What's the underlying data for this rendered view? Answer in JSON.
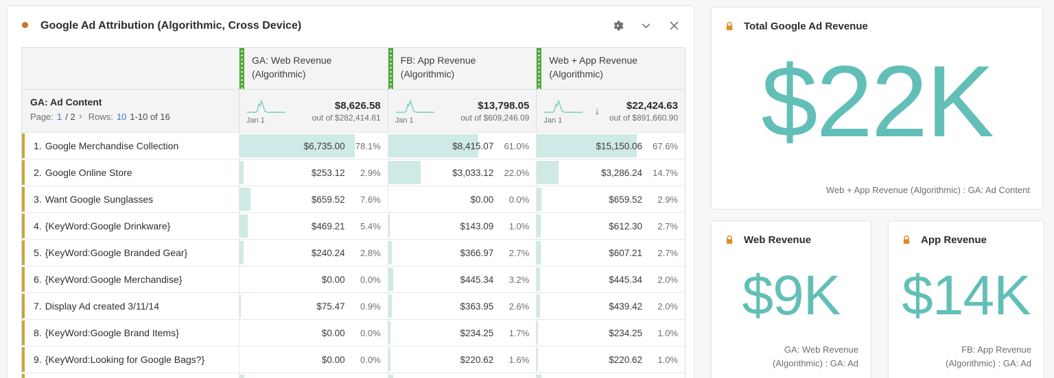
{
  "colors": {
    "accent_teal": "#62bfb7",
    "bar_fill": "#cfe9e6",
    "column_band_green": "#56a83c",
    "row_band_yellow": "#c8a63c",
    "panel_dot_orange": "#c9722f",
    "lock_orange": "#e08a2e",
    "link_blue": "#4674c1"
  },
  "panel": {
    "title": "Google Ad Attribution (Algorithmic, Cross Device)"
  },
  "table": {
    "dimension_header": "GA: Ad Content",
    "pager": {
      "page_label": "Page:",
      "page": "1",
      "page_of": "/ 2",
      "next": "›",
      "rows_label": "Rows:",
      "rows": "10",
      "range": "1-10 of 16"
    },
    "columns": [
      {
        "name": "GA: Web Revenue (Algorithmic)",
        "total": "$8,626.58",
        "out_of": "out of $282,414.81",
        "spark_label": "Jan 1"
      },
      {
        "name": "FB: App Revenue (Algorithmic)",
        "total": "$13,798.05",
        "out_of": "out of $609,246.09",
        "spark_label": "Jan 1"
      },
      {
        "name": "Web + App Revenue (Algorithmic)",
        "total": "$22,424.63",
        "out_of": "out of $891,660.90",
        "spark_label": "Jan 1",
        "sorted": "desc"
      }
    ],
    "rows": [
      {
        "rank": "1.",
        "label": "Google Merchandise Collection",
        "cells": [
          {
            "value": "$6,735.00",
            "pct": "78.1%"
          },
          {
            "value": "$8,415.07",
            "pct": "61.0%"
          },
          {
            "value": "$15,150.06",
            "pct": "67.6%"
          }
        ]
      },
      {
        "rank": "2.",
        "label": "Google Online Store",
        "cells": [
          {
            "value": "$253.12",
            "pct": "2.9%"
          },
          {
            "value": "$3,033.12",
            "pct": "22.0%"
          },
          {
            "value": "$3,286.24",
            "pct": "14.7%"
          }
        ]
      },
      {
        "rank": "3.",
        "label": "Want Google Sunglasses",
        "cells": [
          {
            "value": "$659.52",
            "pct": "7.6%"
          },
          {
            "value": "$0.00",
            "pct": "0.0%"
          },
          {
            "value": "$659.52",
            "pct": "2.9%"
          }
        ]
      },
      {
        "rank": "4.",
        "label": "{KeyWord:Google Drinkware}",
        "cells": [
          {
            "value": "$469.21",
            "pct": "5.4%"
          },
          {
            "value": "$143.09",
            "pct": "1.0%"
          },
          {
            "value": "$612.30",
            "pct": "2.7%"
          }
        ]
      },
      {
        "rank": "5.",
        "label": "{KeyWord:Google Branded Gear}",
        "cells": [
          {
            "value": "$240.24",
            "pct": "2.8%"
          },
          {
            "value": "$366.97",
            "pct": "2.7%"
          },
          {
            "value": "$607.21",
            "pct": "2.7%"
          }
        ]
      },
      {
        "rank": "6.",
        "label": "{KeyWord:Google Merchandise}",
        "cells": [
          {
            "value": "$0.00",
            "pct": "0.0%"
          },
          {
            "value": "$445.34",
            "pct": "3.2%"
          },
          {
            "value": "$445.34",
            "pct": "2.0%"
          }
        ]
      },
      {
        "rank": "7.",
        "label": "Display Ad created 3/11/14",
        "cells": [
          {
            "value": "$75.47",
            "pct": "0.9%"
          },
          {
            "value": "$363.95",
            "pct": "2.6%"
          },
          {
            "value": "$439.42",
            "pct": "2.0%"
          }
        ]
      },
      {
        "rank": "8.",
        "label": "{KeyWord:Google Brand Items}",
        "cells": [
          {
            "value": "$0.00",
            "pct": "0.0%"
          },
          {
            "value": "$234.25",
            "pct": "1.7%"
          },
          {
            "value": "$234.25",
            "pct": "1.0%"
          }
        ]
      },
      {
        "rank": "9.",
        "label": "{KeyWord:Looking for Google Bags?}",
        "cells": [
          {
            "value": "$0.00",
            "pct": "0.0%"
          },
          {
            "value": "$220.62",
            "pct": "1.6%"
          },
          {
            "value": "$220.62",
            "pct": "1.0%"
          }
        ]
      }
    ]
  },
  "cards": {
    "total": {
      "title": "Total Google Ad Revenue",
      "value": "$22K",
      "subtitle": "Web + App Revenue (Algorithmic) : GA: Ad Content"
    },
    "web": {
      "title": "Web Revenue",
      "value": "$9K",
      "subtitle_line1": "GA: Web Revenue",
      "subtitle_line2": "(Algorithmic) : GA: Ad"
    },
    "app": {
      "title": "App Revenue",
      "value": "$14K",
      "subtitle_line1": "FB: App Revenue",
      "subtitle_line2": "(Algorithmic) : GA: Ad"
    }
  }
}
